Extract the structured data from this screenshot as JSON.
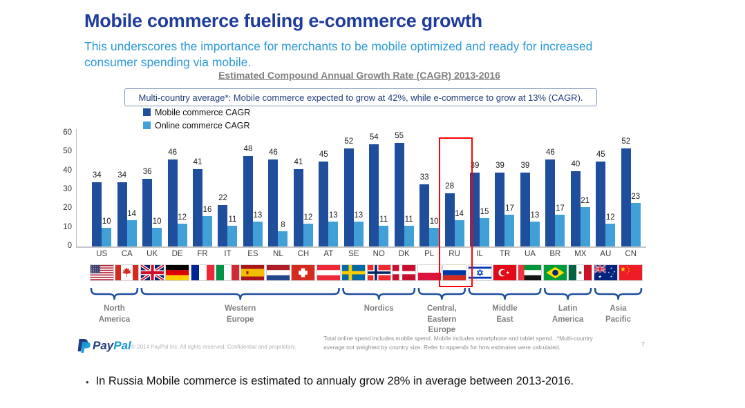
{
  "slide": {
    "title": "Mobile commerce fueling e-commerce growth",
    "subtitle": "This underscores the importance for merchants to be mobile optimized and ready for increased consumer spending via mobile."
  },
  "chart_data": {
    "type": "bar",
    "title": "Estimated Compound Annual Growth Rate (CAGR) 2013-2016",
    "callout": "Multi-country average*: Mobile commerce expected to grow at 42%, while e-commerce to grow at 13% (CAGR).",
    "legend": [
      {
        "label": "Mobile commerce CAGR",
        "color": "#1F4E9C"
      },
      {
        "label": "Online commerce CAGR",
        "color": "#41A0D8"
      }
    ],
    "y_axis": {
      "min": 0,
      "max": 60,
      "ticks": [
        0,
        10,
        20,
        30,
        40,
        50,
        60
      ]
    },
    "grid": false,
    "legend_position": "top-left",
    "categories": [
      "US",
      "CA",
      "UK",
      "DE",
      "FR",
      "IT",
      "ES",
      "NL",
      "CH",
      "AT",
      "SE",
      "NO",
      "DK",
      "PL",
      "RU",
      "IL",
      "TR",
      "UA",
      "BR",
      "MX",
      "AU",
      "CN"
    ],
    "series": [
      {
        "name": "Mobile commerce CAGR",
        "color": "#1F4E9C",
        "values": [
          34,
          34,
          36,
          46,
          41,
          22,
          48,
          46,
          41,
          45,
          52,
          54,
          55,
          33,
          28,
          39,
          39,
          39,
          46,
          40,
          45,
          52
        ]
      },
      {
        "name": "Online commerce CAGR",
        "color": "#41A0D8",
        "values": [
          10,
          14,
          10,
          12,
          16,
          11,
          13,
          8,
          12,
          13,
          13,
          11,
          11,
          10,
          14,
          15,
          17,
          13,
          17,
          21,
          12,
          23
        ]
      }
    ],
    "highlighted_category": "RU",
    "highlight_color": "#FF0000",
    "regions": [
      {
        "label": "North\nAmerica",
        "from": 0,
        "to": 1,
        "slug": "north-america"
      },
      {
        "label": "Western\nEurope",
        "from": 2,
        "to": 9,
        "slug": "western-europe"
      },
      {
        "label": "Nordics",
        "from": 10,
        "to": 12,
        "slug": "nordics"
      },
      {
        "label": "Central,\nEastern\nEurope",
        "from": 13,
        "to": 14,
        "slug": "central-eastern-europe"
      },
      {
        "label": "Middle\nEast",
        "from": 15,
        "to": 17,
        "slug": "middle-east"
      },
      {
        "label": "Latin\nAmerica",
        "from": 18,
        "to": 19,
        "slug": "latin-america"
      },
      {
        "label": "Asia\nPacific",
        "from": 20,
        "to": 21,
        "slug": "asia-pacific"
      }
    ]
  },
  "footer": {
    "logo": {
      "pay": "Pay",
      "pal": "Pal",
      "color_dark": "#253B80",
      "color_light": "#179BD7"
    },
    "copyright": "© 2014 PayPal Inc. All rights reserved. Confidential and proprietary.",
    "footnote": "Total online spend includes mobile spend. Mobile includes smartphone and tablet spend. .*Multi-country average not weighted by country size. Refer to appendx for how estimates were calculated.",
    "page_number": "7"
  },
  "bottom_note": "In Russia Mobile commerce is estimated to annualy grow 28% in average between 2013-2016."
}
